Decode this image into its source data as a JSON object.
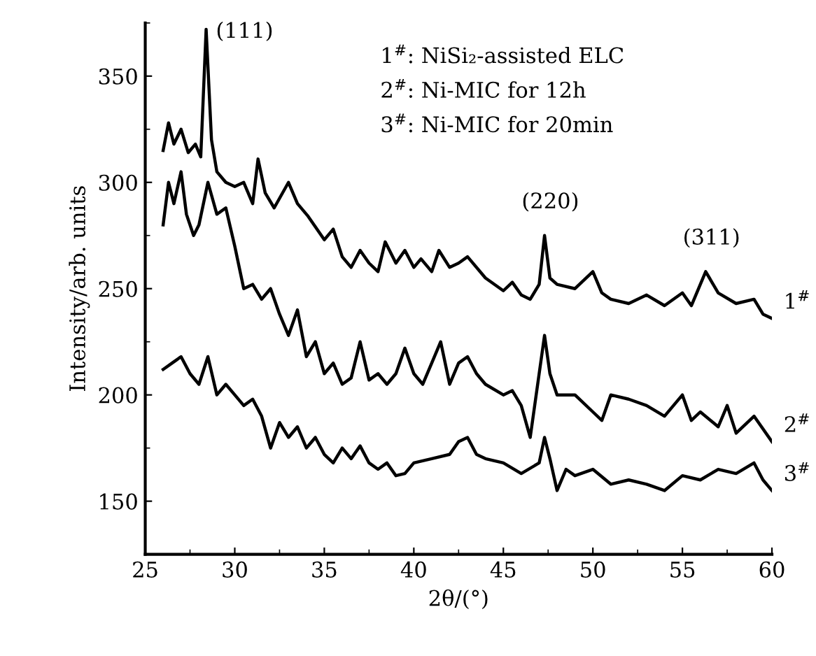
{
  "chart_data": {
    "type": "line",
    "xlabel": "2θ/(°)",
    "ylabel": "Intensity/arb. units",
    "xlim": [
      25,
      60
    ],
    "xticks": [
      25,
      30,
      35,
      40,
      45,
      50,
      55,
      60
    ],
    "ylim": [
      125,
      375
    ],
    "yticks": [
      150,
      200,
      250,
      300,
      350
    ],
    "grid": false,
    "marker": "none",
    "line_style": "solid",
    "annotations": [
      {
        "text": "(111)",
        "x": 28.4,
        "y": 372
      },
      {
        "text": "(220)",
        "x": 47.3,
        "y": 275
      },
      {
        "text": "(311)",
        "x": 56.3,
        "y": 258
      },
      "1$^{#}$: NiSi₂-assisted ELC",
      "2$^{#}$: Ni-MIC for 12h",
      "3$^{#}$: Ni-MIC for 20min"
    ],
    "series": [
      {
        "name": "1$^{#}$",
        "color": "#000000",
        "x": [
          26,
          26.3,
          26.6,
          27,
          27.4,
          27.8,
          28.1,
          28.4,
          28.7,
          29,
          29.5,
          30,
          30.5,
          31,
          31.3,
          31.7,
          32.2,
          33,
          33.5,
          34.1,
          35,
          35.5,
          36,
          36.5,
          37,
          37.5,
          38,
          38.4,
          39,
          39.5,
          40,
          40.4,
          41,
          41.4,
          42,
          42.5,
          43,
          44,
          45,
          45.5,
          46,
          46.5,
          47,
          47.3,
          47.6,
          48,
          49,
          50,
          50.5,
          51,
          52,
          53,
          54,
          55,
          55.5,
          56.3,
          57,
          58,
          59,
          59.5,
          60
        ],
        "values": [
          315,
          328,
          318,
          325,
          314,
          318,
          312,
          372,
          320,
          305,
          300,
          298,
          300,
          290,
          311,
          295,
          288,
          300,
          290,
          284,
          273,
          278,
          265,
          260,
          268,
          262,
          258,
          272,
          262,
          268,
          260,
          264,
          258,
          268,
          260,
          262,
          265,
          255,
          249,
          253,
          247,
          245,
          252,
          275,
          255,
          252,
          250,
          258,
          248,
          245,
          243,
          247,
          242,
          248,
          242,
          258,
          248,
          243,
          245,
          238,
          236
        ]
      },
      {
        "name": "2$^{#}$",
        "color": "#000000",
        "x": [
          26,
          26.3,
          26.6,
          27,
          27.3,
          27.7,
          28,
          28.5,
          29,
          29.5,
          30,
          30.5,
          31,
          31.5,
          32,
          32.5,
          33,
          33.5,
          34,
          34.5,
          35,
          35.5,
          36,
          36.5,
          37,
          37.5,
          38,
          38.5,
          39,
          39.5,
          40,
          40.5,
          41,
          41.5,
          42,
          42.5,
          43,
          43.5,
          44,
          45,
          45.5,
          46,
          46.5,
          47,
          47.3,
          47.6,
          48,
          49,
          50,
          50.5,
          51,
          52,
          53,
          54,
          55,
          55.5,
          56,
          57,
          57.5,
          58,
          59,
          60
        ],
        "values": [
          280,
          300,
          290,
          305,
          285,
          275,
          280,
          300,
          285,
          288,
          270,
          250,
          252,
          245,
          250,
          238,
          228,
          240,
          218,
          225,
          210,
          215,
          205,
          208,
          225,
          207,
          210,
          205,
          210,
          222,
          210,
          205,
          215,
          225,
          205,
          215,
          218,
          210,
          205,
          200,
          202,
          195,
          180,
          210,
          228,
          210,
          200,
          200,
          192,
          188,
          200,
          198,
          195,
          190,
          200,
          188,
          192,
          185,
          195,
          182,
          190,
          178
        ]
      },
      {
        "name": "3$^{#}$",
        "color": "#000000",
        "x": [
          26,
          26.5,
          27,
          27.5,
          28,
          28.5,
          29,
          29.5,
          30,
          30.5,
          31,
          31.5,
          32,
          32.5,
          33,
          33.5,
          34,
          34.5,
          35,
          35.5,
          36,
          36.5,
          37,
          37.5,
          38,
          38.5,
          39,
          39.5,
          40,
          41,
          42,
          42.5,
          43,
          43.5,
          44,
          45,
          46,
          47,
          47.3,
          47.6,
          48,
          48.5,
          49,
          50,
          51,
          52,
          53,
          54,
          55,
          56,
          57,
          58,
          59,
          59.5,
          60
        ],
        "values": [
          212,
          215,
          218,
          210,
          205,
          218,
          200,
          205,
          200,
          195,
          198,
          190,
          175,
          187,
          180,
          185,
          175,
          180,
          172,
          168,
          175,
          170,
          176,
          168,
          165,
          168,
          162,
          163,
          168,
          170,
          172,
          178,
          180,
          172,
          170,
          168,
          163,
          168,
          180,
          170,
          155,
          165,
          162,
          165,
          158,
          160,
          158,
          155,
          162,
          160,
          165,
          163,
          168,
          160,
          155
        ]
      }
    ]
  }
}
